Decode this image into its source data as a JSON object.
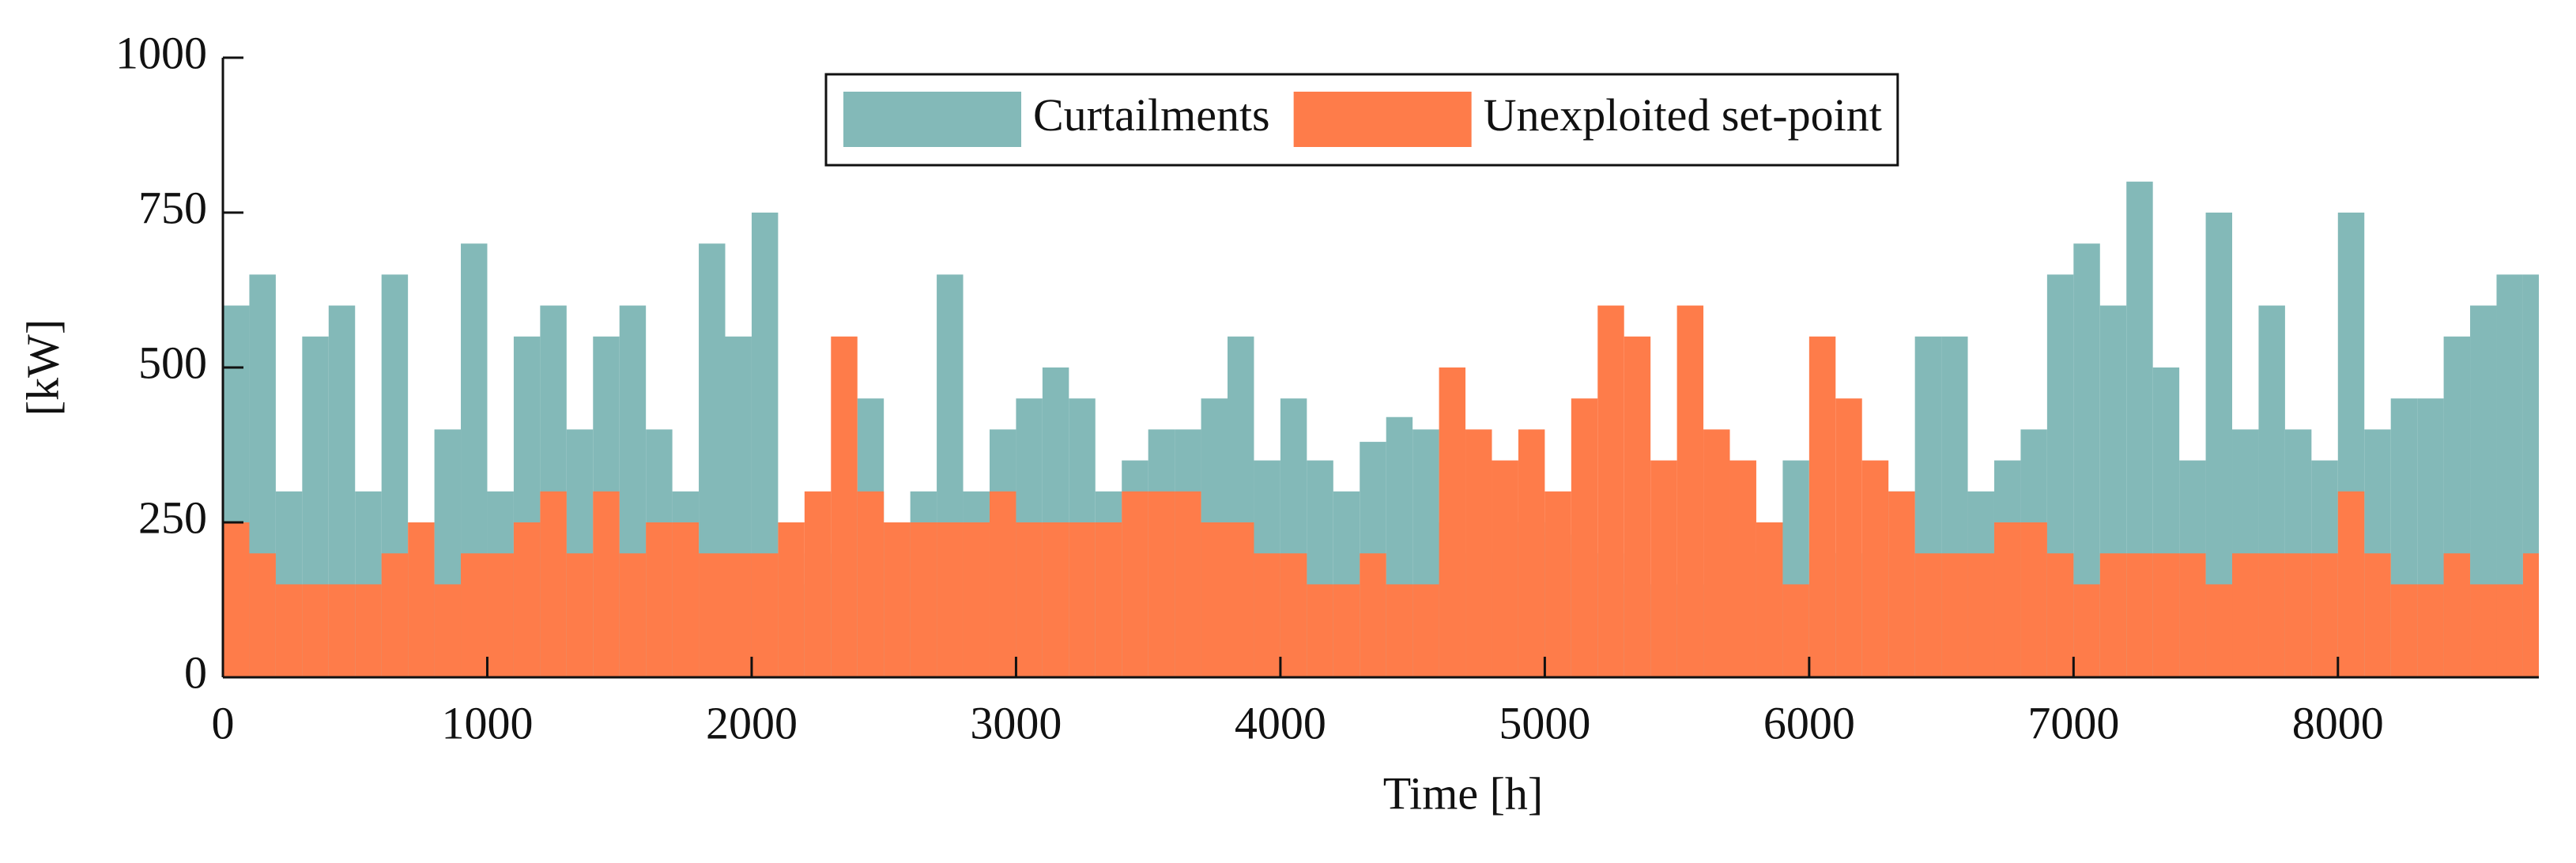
{
  "chart_data": {
    "type": "bar",
    "x_label": "Time [h]",
    "y_label": "[kW]",
    "x": [
      0,
      100,
      200,
      300,
      400,
      500,
      600,
      700,
      800,
      900,
      1000,
      1100,
      1200,
      1300,
      1400,
      1500,
      1600,
      1700,
      1800,
      1900,
      2000,
      2100,
      2200,
      2300,
      2400,
      2500,
      2600,
      2700,
      2800,
      2900,
      3000,
      3100,
      3200,
      3300,
      3400,
      3500,
      3600,
      3700,
      3800,
      3900,
      4000,
      4100,
      4200,
      4300,
      4400,
      4500,
      4600,
      4700,
      4800,
      4900,
      5000,
      5100,
      5200,
      5300,
      5400,
      5500,
      5600,
      5700,
      5800,
      5900,
      6000,
      6100,
      6200,
      6300,
      6400,
      6500,
      6600,
      6700,
      6800,
      6900,
      7000,
      7100,
      7200,
      7300,
      7400,
      7500,
      7600,
      7700,
      7800,
      7900,
      8000,
      8100,
      8200,
      8300,
      8400,
      8500,
      8600,
      8700
    ],
    "series": [
      {
        "name": "Curtailments",
        "color": "#83b9b8",
        "values": [
          600,
          650,
          300,
          550,
          600,
          300,
          650,
          200,
          400,
          700,
          300,
          550,
          600,
          400,
          550,
          600,
          400,
          300,
          700,
          550,
          750,
          150,
          200,
          300,
          450,
          250,
          300,
          650,
          300,
          400,
          450,
          500,
          450,
          300,
          350,
          400,
          400,
          450,
          550,
          350,
          450,
          350,
          300,
          380,
          420,
          400,
          250,
          200,
          250,
          250,
          230,
          200,
          200,
          150,
          150,
          150,
          150,
          200,
          250,
          350,
          200,
          200,
          200,
          300,
          550,
          550,
          300,
          350,
          400,
          650,
          700,
          600,
          800,
          500,
          350,
          750,
          400,
          600,
          400,
          350,
          750,
          400,
          450,
          450,
          550,
          600,
          650,
          650
        ]
      },
      {
        "name": "Unexploited set-point",
        "color": "#fe7c4a",
        "values": [
          250,
          200,
          150,
          150,
          150,
          150,
          200,
          250,
          150,
          200,
          200,
          250,
          300,
          200,
          300,
          200,
          250,
          250,
          200,
          200,
          200,
          250,
          300,
          550,
          300,
          250,
          250,
          250,
          250,
          300,
          250,
          250,
          250,
          250,
          300,
          300,
          300,
          250,
          250,
          200,
          200,
          150,
          150,
          200,
          150,
          150,
          500,
          400,
          350,
          400,
          300,
          450,
          600,
          550,
          350,
          600,
          400,
          350,
          250,
          150,
          550,
          450,
          350,
          300,
          200,
          200,
          200,
          250,
          250,
          200,
          150,
          200,
          200,
          200,
          200,
          150,
          200,
          200,
          200,
          200,
          300,
          200,
          150,
          150,
          200,
          150,
          150,
          200
        ]
      }
    ],
    "xlim": [
      0,
      8760
    ],
    "xticks": [
      0,
      1000,
      2000,
      3000,
      4000,
      5000,
      6000,
      7000,
      8000
    ],
    "ylim": [
      0,
      1000
    ],
    "yticks": [
      0,
      250,
      500,
      750,
      1000
    ],
    "legend": "top"
  }
}
